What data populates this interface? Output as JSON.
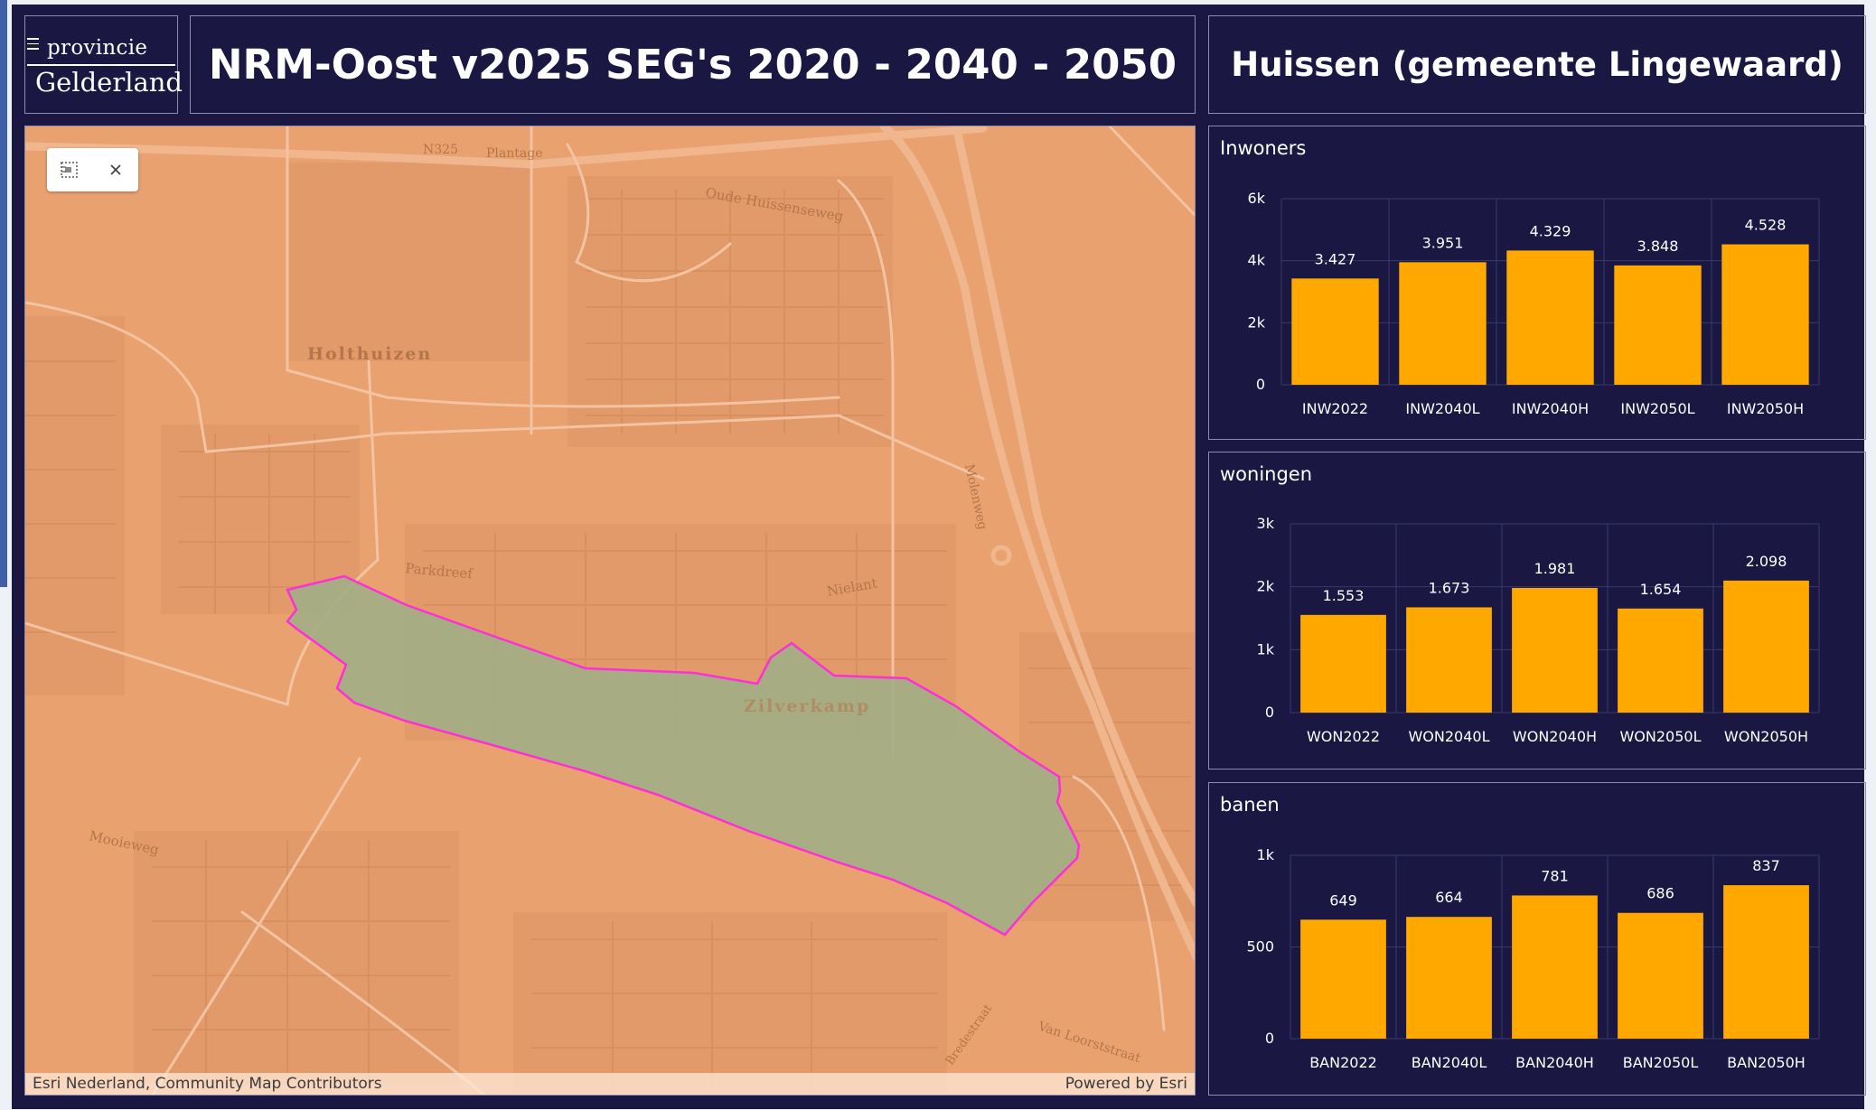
{
  "header": {
    "logo_line1": "provincie",
    "logo_line2": "Gelderland",
    "title": "NRM-Oost v2025 SEG's 2020 - 2040 - 2050",
    "region": "Huissen (gemeente Lingewaard)"
  },
  "map": {
    "labels": {
      "road_n325": "N325",
      "plantage": "Plantage",
      "oude_huissenseweg": "Oude Huissenseweg",
      "holthuizen": "Holthuizen",
      "parkdreef": "Parkdreef",
      "nielant": "Nielant",
      "molenweg": "Molenweg",
      "zilverkamp": "Zilverkamp",
      "mooieweg": "Mooieweg",
      "van_loorststraat": "Van Loorststraat",
      "bredestraat": "Bredestraat"
    },
    "selection_color": "#a3ae86",
    "outline_color": "#ff2fd6",
    "attribution_left": "Esri Nederland, Community Map Contributors",
    "attribution_right": "Powered by Esri"
  },
  "charts": {
    "inwoners": {
      "title": "Inwoners"
    },
    "woningen": {
      "title": "woningen"
    },
    "banen": {
      "title": "banen"
    }
  },
  "chart_data": [
    {
      "type": "bar",
      "title": "Inwoners",
      "categories": [
        "INW2022",
        "INW2040L",
        "INW2040H",
        "INW2050L",
        "INW2050H"
      ],
      "values": [
        3427,
        3951,
        4329,
        3848,
        4528
      ],
      "value_labels": [
        "3.427",
        "3.951",
        "4.329",
        "3.848",
        "4.528"
      ],
      "ylim": [
        0,
        6000
      ],
      "yticks": [
        0,
        2000,
        4000,
        6000
      ],
      "ytick_labels": [
        "0",
        "2k",
        "4k",
        "6k"
      ],
      "bar_color": "#ffa800",
      "grid": true
    },
    {
      "type": "bar",
      "title": "woningen",
      "categories": [
        "WON2022",
        "WON2040L",
        "WON2040H",
        "WON2050L",
        "WON2050H"
      ],
      "values": [
        1553,
        1673,
        1981,
        1654,
        2098
      ],
      "value_labels": [
        "1.553",
        "1.673",
        "1.981",
        "1.654",
        "2.098"
      ],
      "ylim": [
        0,
        3000
      ],
      "yticks": [
        0,
        1000,
        2000,
        3000
      ],
      "ytick_labels": [
        "0",
        "1k",
        "2k",
        "3k"
      ],
      "bar_color": "#ffa800",
      "grid": true
    },
    {
      "type": "bar",
      "title": "banen",
      "categories": [
        "BAN2022",
        "BAN2040L",
        "BAN2040H",
        "BAN2050L",
        "BAN2050H"
      ],
      "values": [
        649,
        664,
        781,
        686,
        837
      ],
      "value_labels": [
        "649",
        "664",
        "781",
        "686",
        "837"
      ],
      "ylim": [
        0,
        1000
      ],
      "yticks": [
        0,
        500,
        1000
      ],
      "ytick_labels": [
        "0",
        "500",
        "1k"
      ],
      "bar_color": "#ffa800",
      "grid": true
    }
  ]
}
